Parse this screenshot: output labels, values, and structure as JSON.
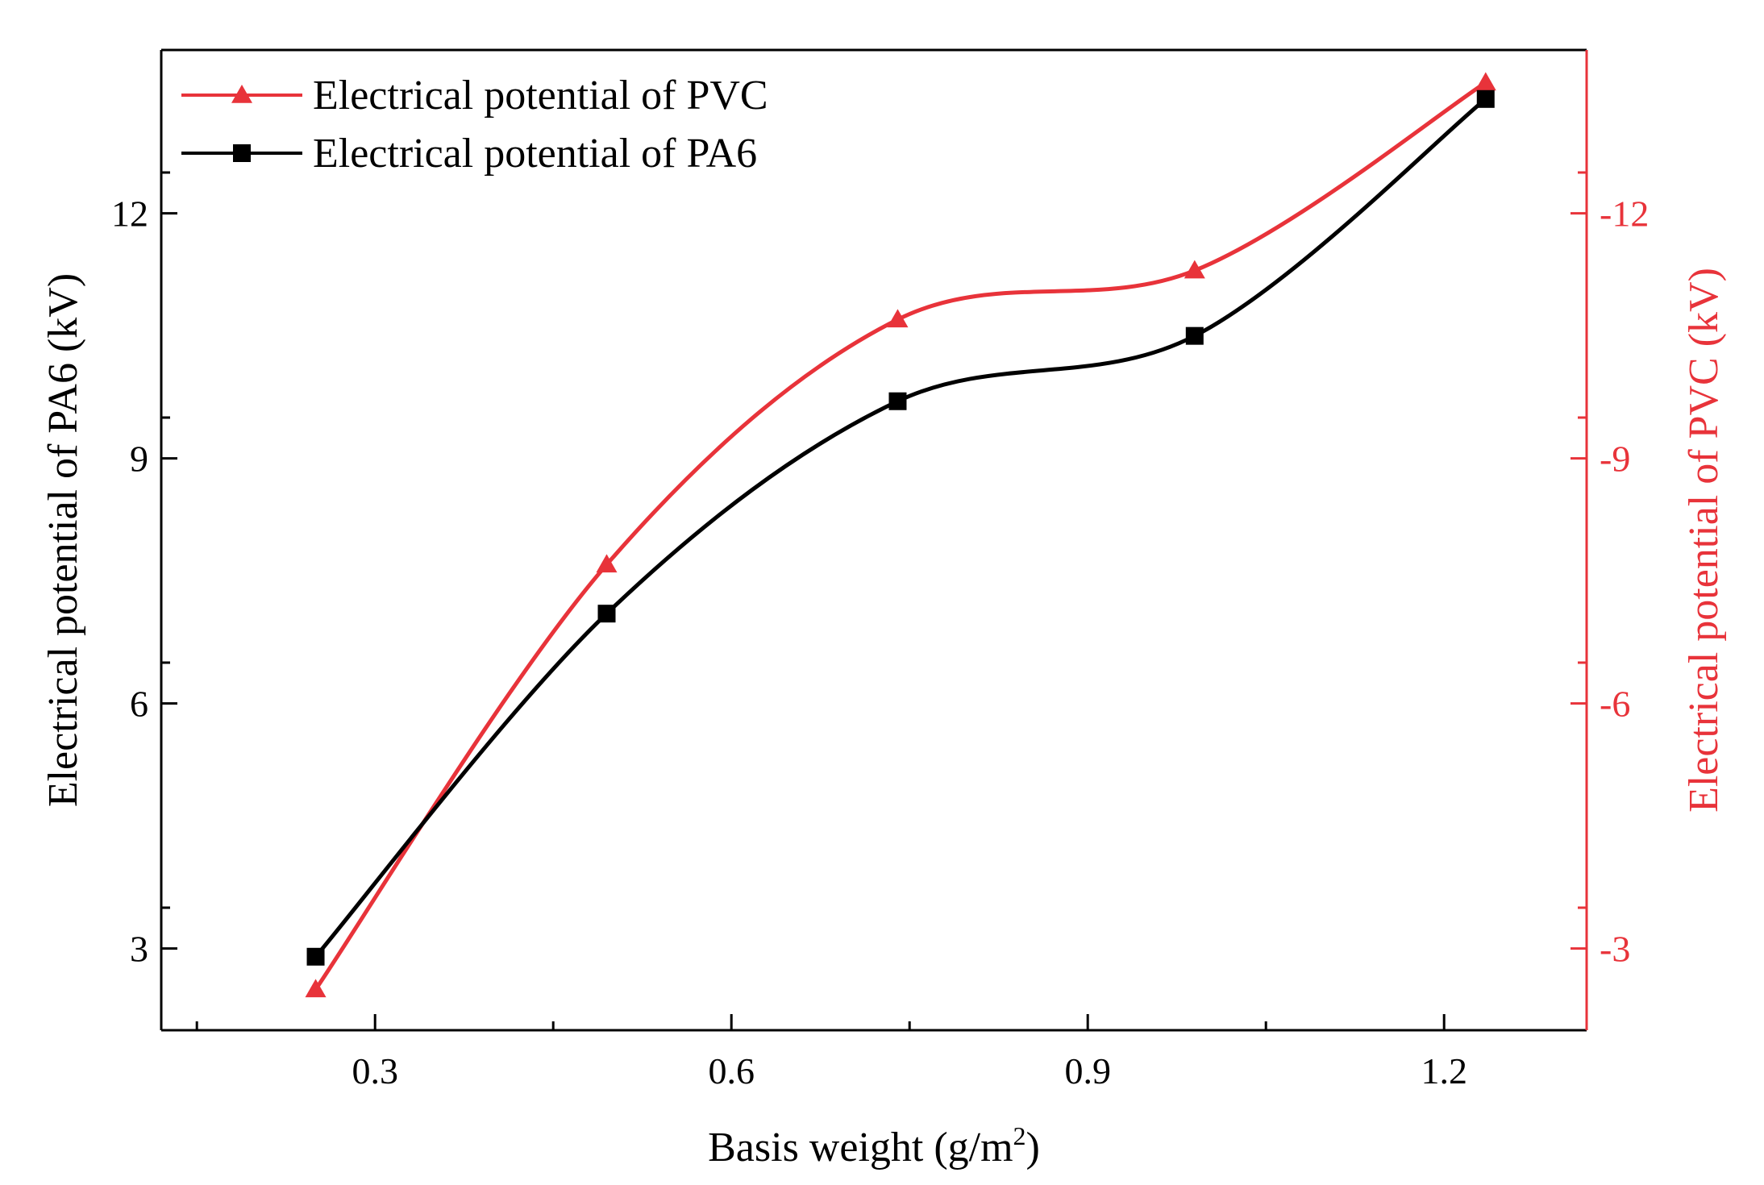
{
  "chart_data": {
    "type": "line",
    "xlabel": "Basis weight (g/m",
    "xlabel_sup": "2",
    "xlabel_end": ")",
    "ylabel_left": "Electrical potential of PA6 (kV)",
    "ylabel_right": "Electrical potential of PVC (kV)",
    "xlim": [
      0.12,
      1.32
    ],
    "ylim_left": [
      2,
      14
    ],
    "ylim_right": [
      -2,
      -14
    ],
    "x_ticks": [
      0.3,
      0.6,
      0.9,
      1.2
    ],
    "x_tick_labels": [
      "0.3",
      "0.6",
      "0.9",
      "1.2"
    ],
    "x_minor_ticks": [
      0.15,
      0.45,
      0.75,
      1.05
    ],
    "y_left_ticks": [
      3,
      6,
      9,
      12
    ],
    "y_left_tick_labels": [
      "3",
      "6",
      "9",
      "12"
    ],
    "y_right_ticks": [
      -3,
      -6,
      -9,
      -12
    ],
    "y_right_tick_labels": [
      "-3",
      "-6",
      "-9",
      "-12"
    ],
    "grid": false,
    "legend_position": "top-left",
    "series": [
      {
        "name": "Electrical potential of PVC",
        "axis": "right",
        "color": "#e8333a",
        "marker": "triangle",
        "x": [
          0.25,
          0.495,
          0.74,
          0.99,
          1.235
        ],
        "values": [
          -2.5,
          -7.7,
          -10.7,
          -11.3,
          -13.6
        ]
      },
      {
        "name": "Electrical potential of PA6",
        "axis": "left",
        "color": "#000000",
        "marker": "square",
        "x": [
          0.25,
          0.495,
          0.74,
          0.99,
          1.235
        ],
        "values": [
          2.9,
          7.1,
          9.7,
          10.5,
          13.4
        ]
      }
    ]
  }
}
